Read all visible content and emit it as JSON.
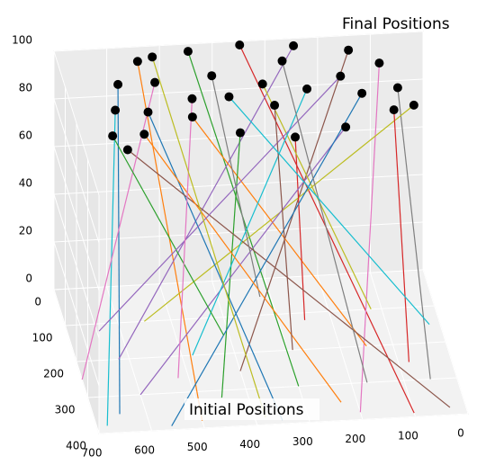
{
  "chart_data": {
    "type": "line3d",
    "annotations": [
      "Final Positions",
      "Initial Positions"
    ],
    "xlim": [
      0,
      700
    ],
    "ylim": [
      0,
      400
    ],
    "zlim": [
      0,
      100
    ],
    "xticks": [
      0,
      100,
      200,
      300,
      400,
      500,
      600,
      700
    ],
    "yticks": [
      0,
      100,
      200,
      300,
      400
    ],
    "zticks": [
      0,
      20,
      40,
      60,
      80,
      100
    ],
    "grid": true,
    "final_marker_color": "#000000",
    "series": [
      {
        "color": "#1f77b4",
        "x": [
          650,
          600
        ],
        "y": [
          350,
          100
        ],
        "z": [
          0,
          100
        ]
      },
      {
        "color": "#ff7f0e",
        "x": [
          500,
          550
        ],
        "y": [
          380,
          40
        ],
        "z": [
          0,
          100
        ]
      },
      {
        "color": "#2ca02c",
        "x": [
          300,
          450
        ],
        "y": [
          300,
          20
        ],
        "z": [
          0,
          100
        ]
      },
      {
        "color": "#d62728",
        "x": [
          100,
          350
        ],
        "y": [
          390,
          10
        ],
        "z": [
          0,
          100
        ]
      },
      {
        "color": "#9467bd",
        "x": [
          620,
          250
        ],
        "y": [
          200,
          20
        ],
        "z": [
          0,
          100
        ]
      },
      {
        "color": "#8c564b",
        "x": [
          400,
          150
        ],
        "y": [
          250,
          40
        ],
        "z": [
          0,
          100
        ]
      },
      {
        "color": "#e377c2",
        "x": [
          200,
          100
        ],
        "y": [
          380,
          80
        ],
        "z": [
          0,
          100
        ]
      },
      {
        "color": "#7f7f7f",
        "x": [
          50,
          80
        ],
        "y": [
          300,
          150
        ],
        "z": [
          0,
          100
        ]
      },
      {
        "color": "#bcbd22",
        "x": [
          550,
          60
        ],
        "y": [
          100,
          200
        ],
        "z": [
          0,
          100
        ]
      },
      {
        "color": "#17becf",
        "x": [
          680,
          620
        ],
        "y": [
          380,
          170
        ],
        "z": [
          0,
          100
        ]
      },
      {
        "color": "#1f77b4",
        "x": [
          350,
          560
        ],
        "y": [
          390,
          180
        ],
        "z": [
          0,
          100
        ]
      },
      {
        "color": "#ff7f0e",
        "x": [
          150,
          480
        ],
        "y": [
          200,
          200
        ],
        "z": [
          0,
          100
        ]
      },
      {
        "color": "#2ca02c",
        "x": [
          450,
          400
        ],
        "y": [
          320,
          250
        ],
        "z": [
          0,
          100
        ]
      },
      {
        "color": "#d62728",
        "x": [
          250,
          300
        ],
        "y": [
          120,
          270
        ],
        "z": [
          0,
          100
        ]
      },
      {
        "color": "#9467bd",
        "x": [
          600,
          200
        ],
        "y": [
          300,
          250
        ],
        "z": [
          0,
          100
        ]
      },
      {
        "color": "#8c564b",
        "x": [
          30,
          620
        ],
        "y": [
          380,
          280
        ],
        "z": [
          0,
          100
        ]
      },
      {
        "color": "#e377c2",
        "x": [
          700,
          530
        ],
        "y": [
          250,
          100
        ],
        "z": [
          0,
          100
        ]
      },
      {
        "color": "#7f7f7f",
        "x": [
          320,
          420
        ],
        "y": [
          50,
          90
        ],
        "z": [
          0,
          100
        ]
      },
      {
        "color": "#bcbd22",
        "x": [
          120,
          330
        ],
        "y": [
          100,
          120
        ],
        "z": [
          0,
          100
        ]
      },
      {
        "color": "#17becf",
        "x": [
          480,
          250
        ],
        "y": [
          200,
          140
        ],
        "z": [
          0,
          100
        ]
      },
      {
        "color": "#1f77b4",
        "x": [
          560,
          150
        ],
        "y": [
          390,
          160
        ],
        "z": [
          0,
          100
        ]
      },
      {
        "color": "#ff7f0e",
        "x": [
          230,
          580
        ],
        "y": [
          350,
          240
        ],
        "z": [
          0,
          100
        ]
      },
      {
        "color": "#2ca02c",
        "x": [
          410,
          640
        ],
        "y": [
          150,
          240
        ],
        "z": [
          0,
          100
        ]
      },
      {
        "color": "#d62728",
        "x": [
          80,
          100
        ],
        "y": [
          250,
          210
        ],
        "z": [
          0,
          100
        ]
      },
      {
        "color": "#9467bd",
        "x": [
          640,
          180
        ],
        "y": [
          120,
          110
        ],
        "z": [
          0,
          100
        ]
      },
      {
        "color": "#8c564b",
        "x": [
          290,
          320
        ],
        "y": [
          200,
          180
        ],
        "z": [
          0,
          100
        ]
      },
      {
        "color": "#e377c2",
        "x": [
          520,
          470
        ],
        "y": [
          260,
          150
        ],
        "z": [
          0,
          100
        ]
      },
      {
        "color": "#7f7f7f",
        "x": [
          170,
          280
        ],
        "y": [
          300,
          60
        ],
        "z": [
          0,
          100
        ]
      },
      {
        "color": "#bcbd22",
        "x": [
          380,
          520
        ],
        "y": [
          380,
          30
        ],
        "z": [
          0,
          100
        ]
      },
      {
        "color": "#17becf",
        "x": [
          20,
          400
        ],
        "y": [
          150,
          150
        ],
        "z": [
          0,
          100
        ]
      }
    ]
  }
}
